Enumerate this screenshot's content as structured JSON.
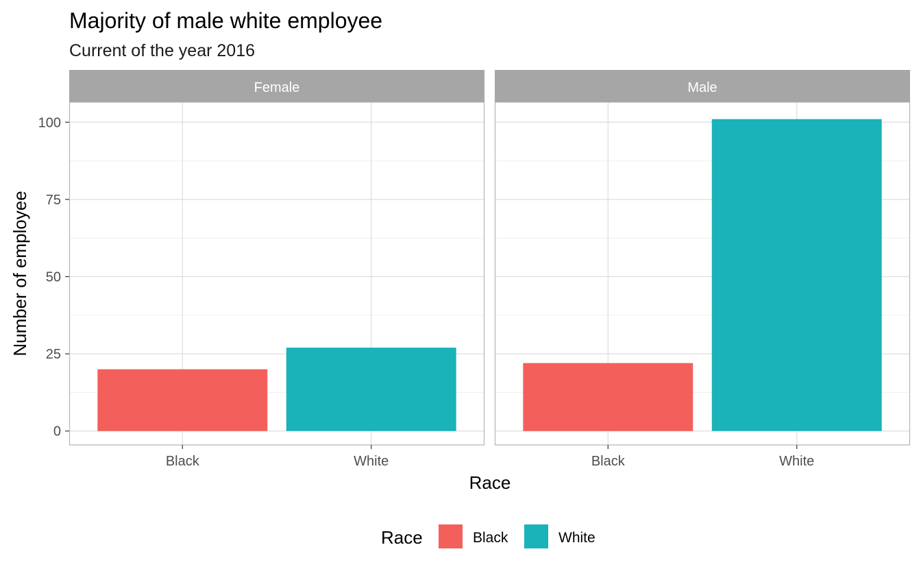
{
  "chart_data": {
    "type": "bar",
    "title": "Majority of male white employee",
    "subtitle": "Current of the year 2016",
    "xlabel": "Race",
    "ylabel": "Number of employee",
    "ylim": [
      -4.5,
      106.5
    ],
    "yticks": [
      0,
      25,
      50,
      75,
      100
    ],
    "grid": true,
    "categories": [
      "Black",
      "White"
    ],
    "facets": [
      {
        "label": "Female",
        "values": [
          20,
          27
        ]
      },
      {
        "label": "Male",
        "values": [
          22,
          101
        ]
      }
    ],
    "legend": {
      "title": "Race",
      "position": "bottom",
      "items": [
        {
          "label": "Black",
          "color": "#F8766D"
        },
        {
          "label": "White",
          "color": "#00BFC4"
        }
      ]
    },
    "colors": {
      "Black": "#F35F5B",
      "White": "#19B3B9",
      "strip": "#A6A6A6",
      "panel_border": "#B3B3B3",
      "grid_major": "#DEDEDE",
      "grid_minor": "#EFEFEF"
    }
  }
}
